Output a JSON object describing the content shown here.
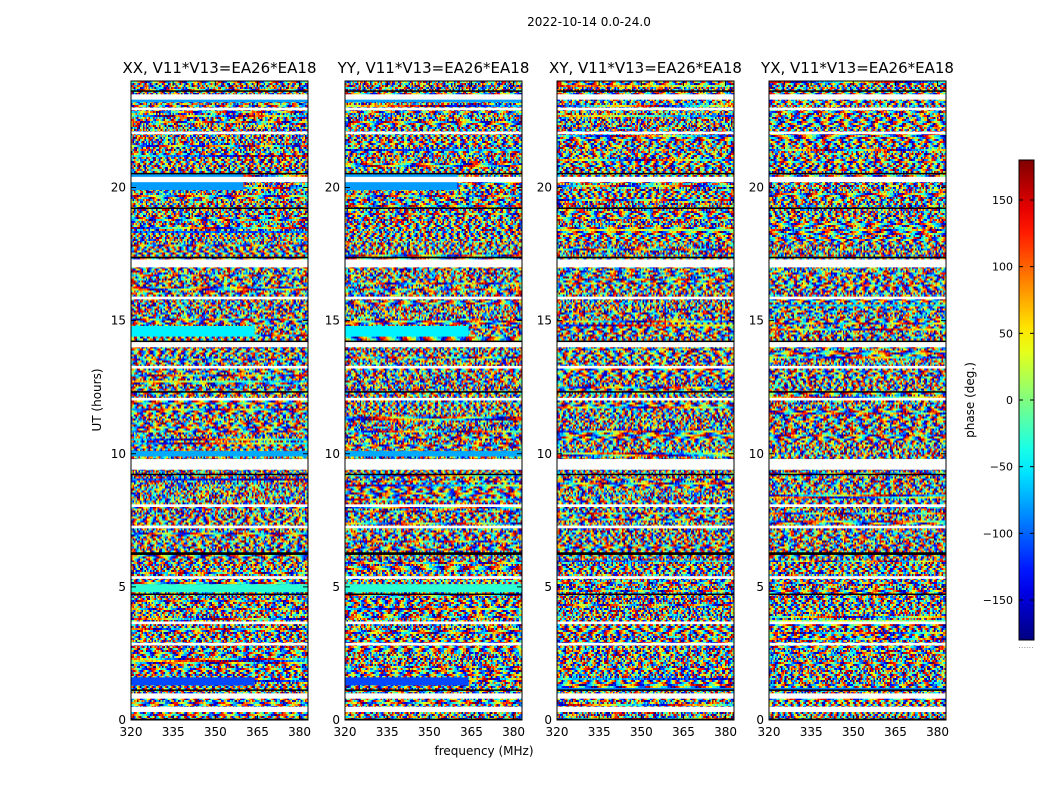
{
  "chart_data": {
    "type": "heatmap",
    "title": "2022-10-14 0.0-24.0",
    "xlabel": "frequency (MHz)",
    "ylabel": "UT (hours)",
    "xlim": [
      320,
      383
    ],
    "ylim": [
      0,
      24
    ],
    "xticks": [
      320,
      335,
      350,
      365,
      380
    ],
    "yticks": [
      0,
      5,
      10,
      15,
      20
    ],
    "colormap": "jet",
    "panels": [
      {
        "title": "XX, V11*V13=EA26*EA18"
      },
      {
        "title": "YY, V11*V13=EA26*EA18"
      },
      {
        "title": "XY, V11*V13=EA26*EA18"
      },
      {
        "title": "YX, V11*V13=EA26*EA18"
      }
    ],
    "colorbar": {
      "label": "phase (deg.)",
      "range": [
        -180,
        180
      ],
      "ticks": [
        -150,
        -100,
        -50,
        0,
        50,
        100,
        150
      ],
      "tick_labels": [
        "−150",
        "−100",
        "−50",
        "0",
        "50",
        "100",
        "150"
      ],
      "footnote": "......"
    },
    "blank_time_ranges_hours": [
      [
        0.3,
        0.5
      ],
      [
        0.8,
        1.0
      ],
      [
        2.8,
        2.9
      ],
      [
        3.6,
        3.7
      ],
      [
        5.3,
        5.4
      ],
      [
        7.2,
        7.3
      ],
      [
        8.0,
        8.1
      ],
      [
        9.4,
        9.8
      ],
      [
        12.0,
        12.1
      ],
      [
        13.2,
        13.3
      ],
      [
        14.0,
        14.2
      ],
      [
        15.8,
        15.9
      ],
      [
        17.0,
        17.3
      ],
      [
        20.2,
        20.4
      ],
      [
        22.0,
        22.1
      ],
      [
        22.9,
        23.0
      ],
      [
        23.3,
        23.5
      ]
    ],
    "flagged_time_ranges_hours": [
      [
        0.0,
        0.05
      ],
      [
        1.1,
        1.15
      ],
      [
        4.7,
        4.75
      ],
      [
        6.2,
        6.3
      ],
      [
        9.2,
        9.25
      ],
      [
        12.3,
        12.35
      ],
      [
        14.2,
        14.25
      ],
      [
        17.35,
        17.4
      ],
      [
        19.2,
        19.25
      ],
      [
        20.5,
        20.55
      ],
      [
        23.6,
        23.65
      ]
    ],
    "uniform_bands": [
      {
        "panels": [
          0,
          1
        ],
        "time": [
          1.3,
          1.6
        ],
        "freq": [
          320,
          364
        ],
        "phase": -110
      },
      {
        "panels": [
          0,
          1
        ],
        "time": [
          4.8,
          5.1
        ],
        "freq": [
          320,
          383
        ],
        "phase": -30
      },
      {
        "panels": [
          0,
          1
        ],
        "time": [
          9.9,
          10.1
        ],
        "freq": [
          320,
          383
        ],
        "phase": -75
      },
      {
        "panels": [
          0,
          1
        ],
        "time": [
          14.4,
          14.8
        ],
        "freq": [
          320,
          364
        ],
        "phase": -50
      },
      {
        "panels": [
          0,
          1
        ],
        "time": [
          19.9,
          20.5
        ],
        "freq": [
          320,
          360
        ],
        "phase": -80
      },
      {
        "panels": [
          0,
          1
        ],
        "time": [
          23.2,
          23.4
        ],
        "freq": [
          320,
          383
        ],
        "phase": -80
      },
      {
        "panels": [
          2,
          3
        ],
        "time": [
          1.1,
          1.2
        ],
        "freq": [
          320,
          383
        ],
        "phase": -90
      }
    ]
  }
}
